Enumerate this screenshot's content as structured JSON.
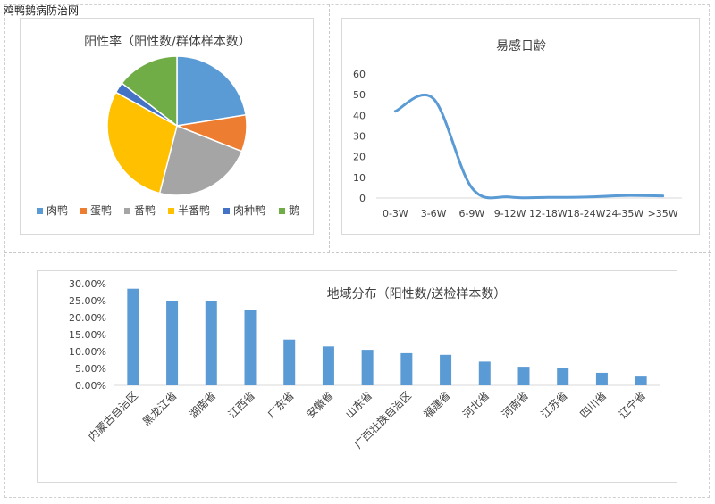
{
  "watermark": "鸡鸭鹅病防治网",
  "chart_data": [
    {
      "type": "pie",
      "title": "阳性率（阳性数/群体样本数）",
      "categories": [
        "肉鸭",
        "蛋鸭",
        "番鸭",
        "半番鸭",
        "肉种鸭",
        "鹅"
      ],
      "values": [
        22.5,
        8.5,
        23.0,
        29.0,
        2.5,
        14.5
      ],
      "colors": [
        "#5b9bd5",
        "#ed7d31",
        "#a5a5a5",
        "#ffc000",
        "#4472c4",
        "#70ad47"
      ],
      "legend": "bottom"
    },
    {
      "type": "line",
      "title": "易感日龄",
      "categories": [
        "0-3W",
        "3-6W",
        "6-9W",
        "9-12W",
        "12-18W",
        "18-24W",
        "24-35W",
        ">35W"
      ],
      "values": [
        42,
        48,
        5,
        0.5,
        0.3,
        0.5,
        1.2,
        1
      ],
      "ylim": [
        0,
        60
      ],
      "yticks": [
        "0",
        "10",
        "20",
        "30",
        "40",
        "50",
        "60"
      ],
      "color": "#5b9bd5",
      "grid": false
    },
    {
      "type": "bar",
      "title": "地域分布（阳性数/送检样本数）",
      "categories": [
        "内蒙古自治区",
        "黑龙江省",
        "湖南省",
        "江西省",
        "广东省",
        "安徽省",
        "山东省",
        "广西壮族自治区",
        "福建省",
        "河北省",
        "河南省",
        "江苏省",
        "四川省",
        "辽宁省"
      ],
      "values": [
        28.5,
        25.0,
        25.0,
        22.2,
        13.5,
        11.5,
        10.5,
        9.5,
        9.0,
        7.0,
        5.5,
        5.2,
        3.7,
        2.6
      ],
      "ylim": [
        0,
        30
      ],
      "yticks": [
        "0.00%",
        "5.00%",
        "10.00%",
        "15.00%",
        "20.00%",
        "25.00%",
        "30.00%"
      ],
      "color": "#5b9bd5",
      "grid": false
    }
  ]
}
